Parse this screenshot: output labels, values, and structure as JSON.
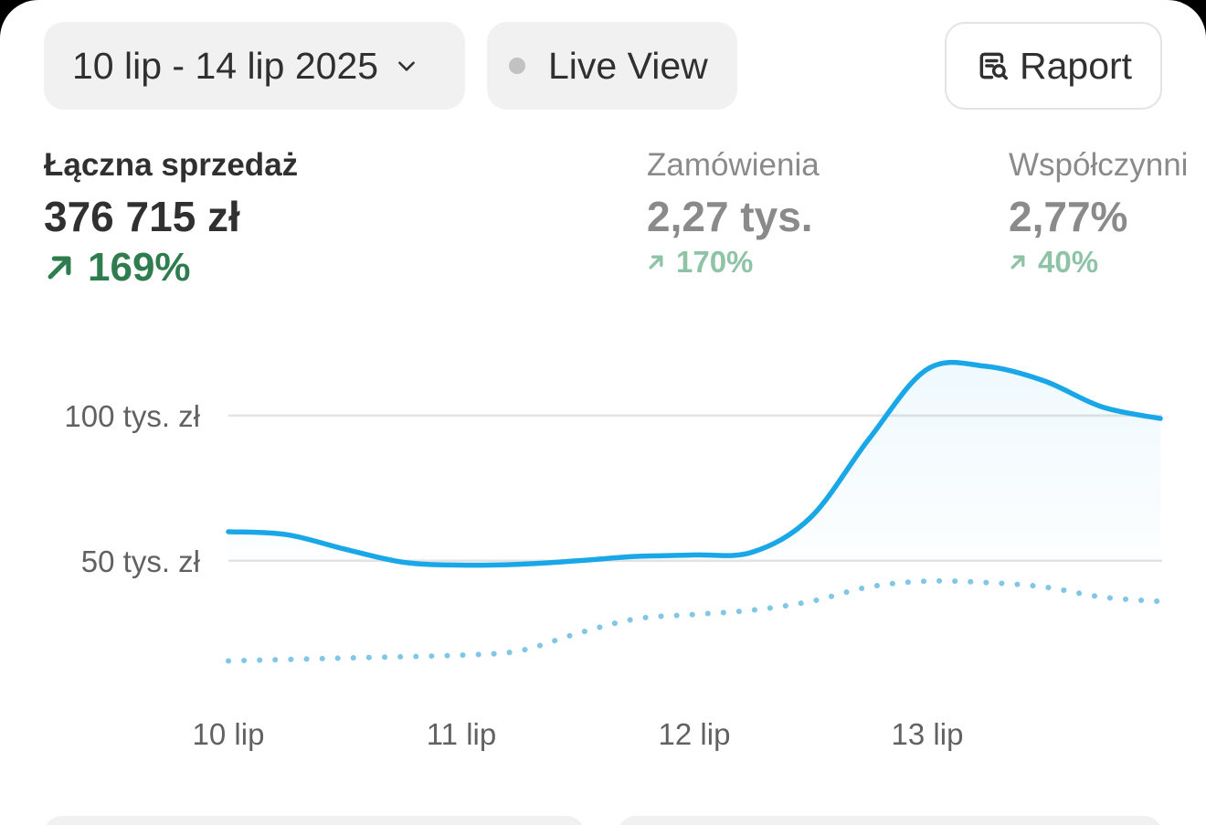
{
  "toolbar": {
    "date_range": "10 lip - 14 lip 2025",
    "live_view": "Live View",
    "report": "Raport"
  },
  "metrics": [
    {
      "label": "Łączna sprzedaż",
      "value": "376 715 zł",
      "delta": "169%"
    },
    {
      "label": "Zamówienia",
      "value": "2,27 tys.",
      "delta": "170%"
    },
    {
      "label": "Współczynni",
      "value": "2,77%",
      "delta": "40%"
    }
  ],
  "colors": {
    "accent": "#1aa7e8",
    "positive": "#2f7d4f",
    "positive_muted": "#8fc3a5"
  },
  "chart_data": {
    "type": "line",
    "y_ticks": [
      "50 tys. zł",
      "100 tys. zł"
    ],
    "y_tick_values": [
      50000,
      100000
    ],
    "ylim": [
      15000,
      122000
    ],
    "x_ticks": [
      "10 lip",
      "11 lip",
      "12 lip",
      "13 lip"
    ],
    "grid": true,
    "series": [
      {
        "style": "solid",
        "x": [
          0,
          0.25,
          0.5,
          0.75,
          1,
          1.25,
          1.5,
          1.75,
          2,
          2.25,
          2.5,
          2.75,
          3,
          3.25,
          3.5,
          3.75,
          4
        ],
        "values": [
          60000,
          59000,
          54000,
          49500,
          48500,
          48800,
          50000,
          51500,
          52000,
          53000,
          65000,
          92000,
          116000,
          117000,
          112000,
          103000,
          99000
        ]
      },
      {
        "style": "dotted",
        "x": [
          0,
          0.5,
          1,
          1.25,
          1.5,
          1.75,
          2,
          2.25,
          2.5,
          2.75,
          3,
          3.25,
          3.5,
          3.75,
          4
        ],
        "values": [
          15500,
          16500,
          17500,
          19000,
          25000,
          30000,
          31500,
          33000,
          36000,
          41000,
          43000,
          42500,
          41000,
          37500,
          36000
        ]
      }
    ]
  }
}
